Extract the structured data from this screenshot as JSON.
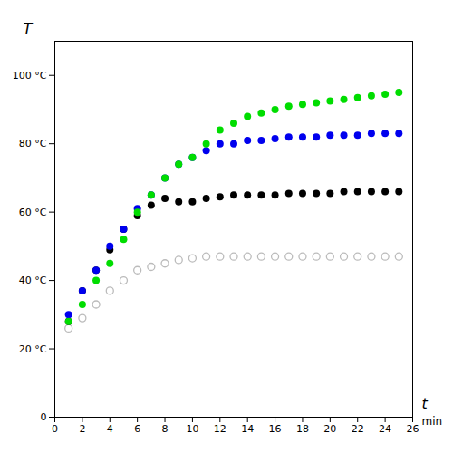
{
  "chart_data": {
    "type": "scatter",
    "xlabel": "t",
    "ylabel": "T",
    "annotations": [
      "min"
    ],
    "x": [
      1,
      2,
      3,
      4,
      5,
      6,
      7,
      8,
      9,
      10,
      11,
      12,
      13,
      14,
      15,
      16,
      17,
      18,
      19,
      20,
      21,
      22,
      23,
      24,
      25
    ],
    "series": [
      {
        "color": "#bbbbbb",
        "marker": "open-circle",
        "values": [
          26,
          29,
          33,
          37,
          40,
          43,
          44,
          45,
          46,
          46.5,
          47,
          47,
          47,
          47,
          47,
          47,
          47,
          47,
          47,
          47,
          47,
          47,
          47,
          47,
          47
        ]
      },
      {
        "color": "#000000",
        "marker": "circle",
        "values": [
          28,
          37,
          43,
          49,
          55,
          59,
          62,
          64,
          63,
          63,
          64,
          64.5,
          65,
          65,
          65,
          65,
          65.5,
          65.5,
          65.5,
          65.5,
          66,
          66,
          66,
          66,
          66
        ]
      },
      {
        "color": "#0000ee",
        "marker": "circle",
        "values": [
          30,
          37,
          43,
          50,
          55,
          61,
          65,
          70,
          74,
          76,
          78,
          80,
          80,
          81,
          81,
          81.5,
          82,
          82,
          82,
          82.5,
          82.5,
          82.5,
          83,
          83,
          83
        ]
      },
      {
        "color": "#00dd00",
        "marker": "circle",
        "values": [
          28,
          33,
          40,
          45,
          52,
          60,
          65,
          70,
          74,
          76,
          80,
          84,
          86,
          88,
          89,
          90,
          91,
          91.5,
          92,
          92.5,
          93,
          93.5,
          94,
          94.5,
          95
        ]
      }
    ],
    "xlim": [
      0,
      26
    ],
    "xticks": [
      0,
      2,
      4,
      6,
      8,
      10,
      12,
      14,
      16,
      18,
      20,
      22,
      24,
      26
    ],
    "ylim": [
      0,
      110
    ],
    "yticks": [
      0,
      {
        "value": 20,
        "label": "20 °C"
      },
      {
        "value": 40,
        "label": "40 °C"
      },
      {
        "value": 60,
        "label": "60 °C"
      },
      {
        "value": 80,
        "label": "80 °C"
      },
      {
        "value": 100,
        "label": "100 °C"
      }
    ],
    "grid": false
  }
}
